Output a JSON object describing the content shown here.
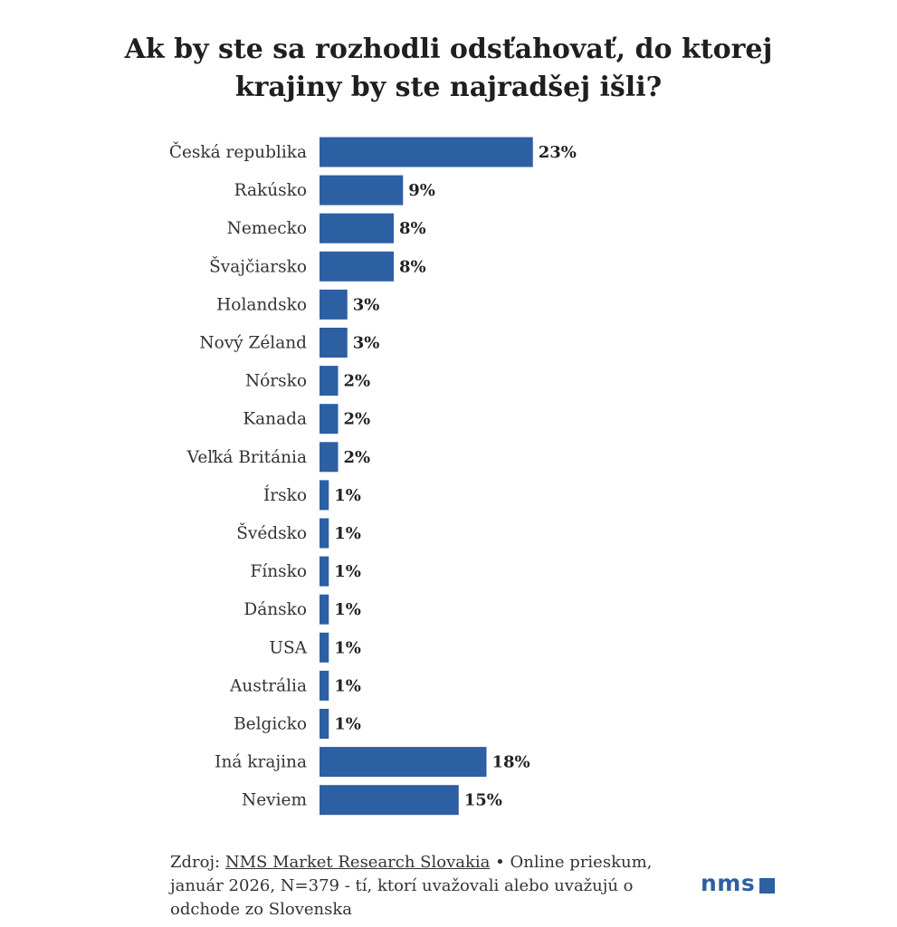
{
  "chart_data": {
    "type": "bar",
    "orientation": "horizontal",
    "title_line1": "Ak by ste sa rozhodli odsťahovať, do ktorej",
    "title_line2": "krajiny by ste najradšej išli?",
    "categories": [
      "Česká republika",
      "Rakúsko",
      "Nemecko",
      "Švajčiarsko",
      "Holandsko",
      "Nový Zéland",
      "Nórsko",
      "Kanada",
      "Veľká Británia",
      "Írsko",
      "Švédsko",
      "Fínsko",
      "Dánsko",
      "USA",
      "Austrália",
      "Belgicko",
      "Iná krajina",
      "Neviem"
    ],
    "values": [
      23,
      9,
      8,
      8,
      3,
      3,
      2,
      2,
      2,
      1,
      1,
      1,
      1,
      1,
      1,
      1,
      18,
      15
    ],
    "value_labels": [
      "23%",
      "9%",
      "8%",
      "8%",
      "3%",
      "3%",
      "2%",
      "2%",
      "2%",
      "1%",
      "1%",
      "1%",
      "1%",
      "1%",
      "1%",
      "1%",
      "18%",
      "15%"
    ],
    "unit": "%",
    "bar_color": "#2d5fa3",
    "xlabel": "",
    "ylabel": ""
  },
  "footer": {
    "source_prefix": "Zdroj: ",
    "source_link": "NMS Market Research Slovakia",
    "source_rest": " • Online prieskum, január 2026, N=379 - tí, ktorí uvažovali alebo uvažujú o odchode zo Slovenska"
  },
  "logo": {
    "text": "nms",
    "color": "#2d5fa3"
  }
}
